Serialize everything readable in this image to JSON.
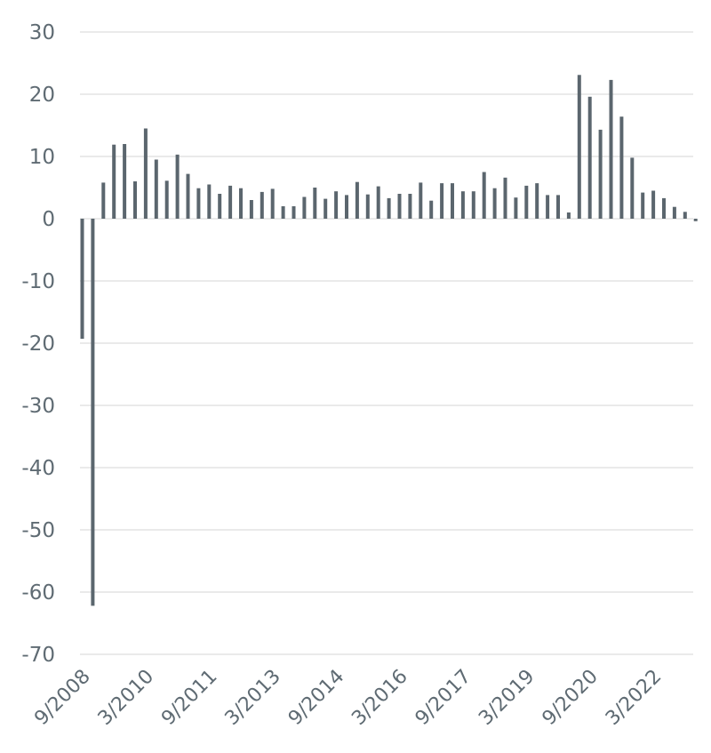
{
  "chart_data": {
    "type": "bar",
    "title": "",
    "xlabel": "",
    "ylabel": "",
    "ylim": [
      -70,
      30
    ],
    "yticks": [
      30,
      20,
      10,
      0,
      -10,
      -20,
      -30,
      -40,
      -50,
      -60,
      -70
    ],
    "grid": true,
    "legend": "none",
    "bar_color": "#5b666e",
    "x_tick_labels": [
      {
        "label": "9/2008",
        "index": 0
      },
      {
        "label": "3/2010",
        "index": 6
      },
      {
        "label": "9/2011",
        "index": 12
      },
      {
        "label": "3/2013",
        "index": 18
      },
      {
        "label": "9/2014",
        "index": 24
      },
      {
        "label": "3/2016",
        "index": 30
      },
      {
        "label": "9/2017",
        "index": 36
      },
      {
        "label": "3/2019",
        "index": 42
      },
      {
        "label": "9/2020",
        "index": 48
      },
      {
        "label": "3/2022",
        "index": 54
      }
    ],
    "categories": [
      "9/2008",
      "12/2008",
      "3/2009",
      "6/2009",
      "9/2009",
      "12/2009",
      "3/2010",
      "6/2010",
      "9/2010",
      "12/2010",
      "3/2011",
      "6/2011",
      "9/2011",
      "12/2011",
      "3/2012",
      "6/2012",
      "9/2012",
      "12/2012",
      "3/2013",
      "6/2013",
      "9/2013",
      "12/2013",
      "3/2014",
      "6/2014",
      "9/2014",
      "12/2014",
      "3/2015",
      "6/2015",
      "9/2015",
      "12/2015",
      "3/2016",
      "6/2016",
      "9/2016",
      "12/2016",
      "3/2017",
      "6/2017",
      "9/2017",
      "12/2017",
      "3/2018",
      "6/2018",
      "9/2018",
      "12/2018",
      "3/2019",
      "6/2019",
      "9/2019",
      "12/2019",
      "3/2020",
      "6/2020",
      "9/2020",
      "12/2020",
      "3/2021",
      "6/2021",
      "9/2021",
      "12/2021",
      "3/2022",
      "6/2022",
      "9/2022",
      "12/2022",
      "3/2023"
    ],
    "values": [
      -19.3,
      -62.2,
      5.8,
      11.9,
      12.0,
      6.0,
      14.5,
      9.5,
      6.1,
      10.3,
      7.2,
      4.9,
      5.5,
      4.0,
      5.3,
      4.9,
      3.0,
      4.3,
      4.8,
      2.0,
      2.0,
      3.5,
      5.0,
      3.2,
      4.4,
      3.8,
      5.9,
      3.9,
      5.2,
      3.3,
      4.0,
      4.0,
      5.8,
      2.9,
      5.7,
      5.7,
      4.4,
      4.4,
      7.5,
      4.9,
      6.6,
      3.4,
      5.3,
      5.7,
      3.8,
      3.8,
      1.0,
      23.1,
      19.6,
      14.3,
      22.3,
      16.4,
      9.8,
      4.2,
      4.5,
      3.3,
      1.9,
      1.1,
      -0.4
    ]
  }
}
